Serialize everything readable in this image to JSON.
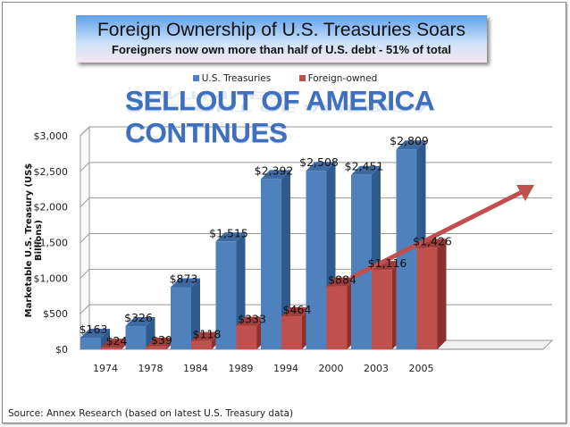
{
  "chart_data": {
    "type": "bar",
    "title": "Foreign Ownership of U.S. Treasuries Soars",
    "subtitle": "Foreigners now own more than half of U.S. debt - 51% of total",
    "banner": "SELLOUT OF AMERICA CONTINUES",
    "ylabel": "Marketable U.S. Treasury (US$ Billions)",
    "xlabel": "",
    "categories": [
      "1974",
      "1978",
      "1984",
      "1989",
      "1994",
      "2000",
      "2003",
      "2005"
    ],
    "series": [
      {
        "name": "U.S. Treasuries",
        "color": "#4f81bd",
        "values": [
          163,
          326,
          873,
          1515,
          2392,
          2508,
          2451,
          2809
        ],
        "labels": [
          "$163",
          "$326",
          "$873",
          "$1,515",
          "$2,392",
          "$2,508",
          "$2,451",
          "$2,809"
        ]
      },
      {
        "name": "Foreign-owned",
        "color": "#c0504d",
        "values": [
          24,
          39,
          118,
          333,
          464,
          884,
          1116,
          1426
        ],
        "labels": [
          "$24",
          "$39",
          "$118",
          "$333",
          "$464",
          "$884",
          "$1,116",
          "$1,426"
        ]
      }
    ],
    "ylim": [
      0,
      3000
    ],
    "yticks": [
      "$0",
      "$500",
      "$1,000",
      "$1,500",
      "$2,000",
      "$2,500",
      "$3,000"
    ],
    "grid": true,
    "legend": "top",
    "style": "3d clustered column",
    "annotation": "red upward trend arrow"
  },
  "source": "Source: Annex Research (based on latest U.S. Treasury data)"
}
